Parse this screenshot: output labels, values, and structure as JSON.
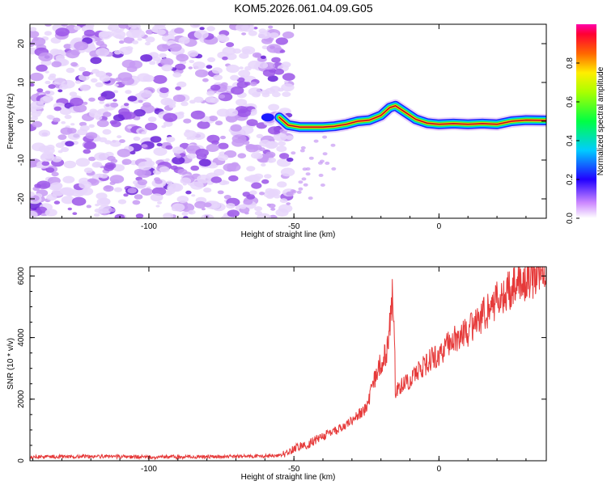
{
  "title": "KOM5.2026.061.04.09.G05",
  "colors": {
    "snr_line": "#e63a3a",
    "spectral_track_edge": "#1a1aff",
    "spectral_track_core": "#ff2020",
    "noise_purple": "#7a2be0"
  },
  "chart_data": [
    {
      "type": "heatmap",
      "title": "KOM5.2026.061.04.09.G05",
      "xlabel": "Height of straight line (km)",
      "ylabel": "Frequency (Hz)",
      "xlim": [
        -141,
        37
      ],
      "ylim": [
        -25,
        25
      ],
      "xticks": [
        -100,
        -50,
        0
      ],
      "yticks": [
        -20,
        -10,
        0,
        10,
        20
      ],
      "noise_region_x": [
        -141,
        -53
      ],
      "signal_track": {
        "x": [
          -55,
          -52,
          -48,
          -44,
          -40,
          -36,
          -32,
          -28,
          -24,
          -20,
          -17,
          -15,
          -12,
          -8,
          -4,
          0,
          5,
          10,
          15,
          20,
          25,
          30,
          37
        ],
        "y": [
          1,
          -1,
          -1.5,
          -1.5,
          -1.5,
          -1.3,
          -0.8,
          0,
          0.3,
          1.5,
          3.5,
          4,
          2.5,
          0.5,
          -0.5,
          -0.8,
          -0.6,
          -0.8,
          -0.6,
          -0.8,
          0,
          0.3,
          0.2
        ]
      },
      "colorbar": {
        "label": "Normalized spectral amplitude",
        "range": [
          0,
          1
        ],
        "ticks": [
          "0.0",
          "0.2",
          "0.4",
          "0.6",
          "0.8"
        ]
      }
    },
    {
      "type": "line",
      "xlabel": "Height of straight line (km)",
      "ylabel": "SNR (10 * v/v)",
      "xlim": [
        -141,
        37
      ],
      "ylim": [
        0,
        6300
      ],
      "xticks": [
        -100,
        -50,
        0
      ],
      "yticks": [
        0,
        2000,
        4000,
        6000
      ],
      "series": [
        {
          "name": "SNR",
          "x": [
            -141,
            -120,
            -100,
            -80,
            -60,
            -54,
            -50,
            -45,
            -40,
            -35,
            -30,
            -25,
            -22,
            -20,
            -18,
            -16,
            -15.5,
            -15,
            -14,
            -12,
            -10,
            -5,
            0,
            5,
            10,
            15,
            20,
            25,
            30,
            37
          ],
          "y": [
            130,
            140,
            120,
            130,
            150,
            180,
            400,
            550,
            800,
            1000,
            1300,
            1700,
            2700,
            3200,
            3500,
            5400,
            4800,
            2000,
            2400,
            2500,
            2600,
            3100,
            3500,
            3900,
            4200,
            4700,
            5200,
            5600,
            5900,
            6100
          ]
        }
      ]
    }
  ]
}
